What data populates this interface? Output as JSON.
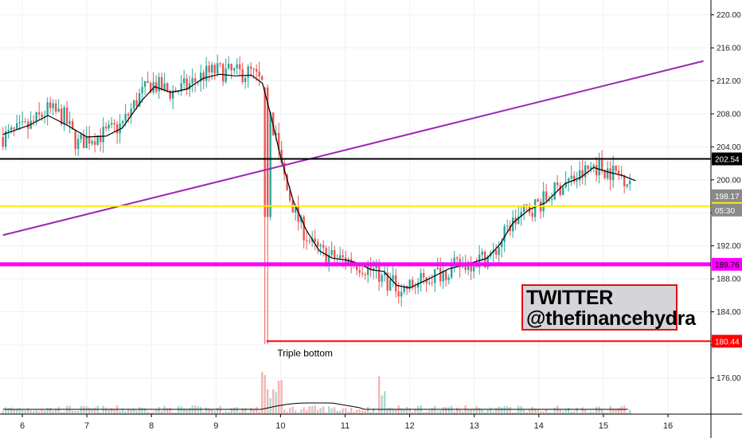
{
  "chart_data": {
    "type": "candlestick",
    "x_tick_labels": [
      "6",
      "7",
      "8",
      "9",
      "10",
      "11",
      "12",
      "13",
      "14",
      "15",
      "16"
    ],
    "y_tick_labels": [
      "176.00",
      "180.00",
      "184.00",
      "188.00",
      "192.00",
      "196.00",
      "200.00",
      "204.00",
      "208.00",
      "212.00",
      "216.00",
      "220.00"
    ],
    "ylim": [
      171.6,
      221.8
    ],
    "y_ticks": [
      176,
      180,
      184,
      188,
      192,
      196,
      200,
      204,
      208,
      212,
      216,
      220
    ],
    "price_series": [
      {
        "x": 5.7,
        "y": 205.2
      },
      {
        "x": 6.1,
        "y": 206.4
      },
      {
        "x": 6.4,
        "y": 208.5
      },
      {
        "x": 6.65,
        "y": 207.6
      },
      {
        "x": 6.85,
        "y": 204.3
      },
      {
        "x": 7.05,
        "y": 205.2
      },
      {
        "x": 7.3,
        "y": 205.6
      },
      {
        "x": 7.55,
        "y": 206.7
      },
      {
        "x": 7.8,
        "y": 210.0
      },
      {
        "x": 8.0,
        "y": 211.7
      },
      {
        "x": 8.3,
        "y": 210.6
      },
      {
        "x": 8.55,
        "y": 211.3
      },
      {
        "x": 8.8,
        "y": 212.7
      },
      {
        "x": 9.0,
        "y": 213.2
      },
      {
        "x": 9.3,
        "y": 212.9
      },
      {
        "x": 9.55,
        "y": 213.0
      },
      {
        "x": 9.75,
        "y": 211.3
      },
      {
        "x": 9.9,
        "y": 206.0
      },
      {
        "x": 10.1,
        "y": 198.8
      },
      {
        "x": 10.3,
        "y": 194.6
      },
      {
        "x": 10.5,
        "y": 191.9
      },
      {
        "x": 10.7,
        "y": 190.8
      },
      {
        "x": 10.9,
        "y": 190.4
      },
      {
        "x": 11.1,
        "y": 190.2
      },
      {
        "x": 11.3,
        "y": 189.4
      },
      {
        "x": 11.5,
        "y": 188.8
      },
      {
        "x": 11.7,
        "y": 187.4
      },
      {
        "x": 11.9,
        "y": 186.8
      },
      {
        "x": 12.1,
        "y": 187.3
      },
      {
        "x": 12.4,
        "y": 188.6
      },
      {
        "x": 12.7,
        "y": 189.4
      },
      {
        "x": 13.0,
        "y": 190.2
      },
      {
        "x": 13.3,
        "y": 190.9
      },
      {
        "x": 13.55,
        "y": 194.5
      },
      {
        "x": 13.8,
        "y": 196.2
      },
      {
        "x": 14.1,
        "y": 197.6
      },
      {
        "x": 14.4,
        "y": 199.7
      },
      {
        "x": 14.6,
        "y": 200.2
      },
      {
        "x": 14.85,
        "y": 201.8
      },
      {
        "x": 15.1,
        "y": 201.1
      },
      {
        "x": 15.3,
        "y": 200.5
      },
      {
        "x": 15.45,
        "y": 199.8
      }
    ],
    "moving_average": [
      {
        "x": 5.7,
        "y": 205.5
      },
      {
        "x": 6.1,
        "y": 206.6
      },
      {
        "x": 6.4,
        "y": 207.8
      },
      {
        "x": 6.7,
        "y": 206.6
      },
      {
        "x": 7.0,
        "y": 205.2
      },
      {
        "x": 7.3,
        "y": 205.3
      },
      {
        "x": 7.55,
        "y": 206.3
      },
      {
        "x": 7.85,
        "y": 209.6
      },
      {
        "x": 8.05,
        "y": 211.3
      },
      {
        "x": 8.3,
        "y": 210.6
      },
      {
        "x": 8.55,
        "y": 211.0
      },
      {
        "x": 8.8,
        "y": 212.3
      },
      {
        "x": 9.05,
        "y": 212.8
      },
      {
        "x": 9.3,
        "y": 212.6
      },
      {
        "x": 9.55,
        "y": 212.7
      },
      {
        "x": 9.72,
        "y": 211.7
      },
      {
        "x": 9.85,
        "y": 207.8
      },
      {
        "x": 10.0,
        "y": 202.8
      },
      {
        "x": 10.2,
        "y": 197.4
      },
      {
        "x": 10.4,
        "y": 193.9
      },
      {
        "x": 10.6,
        "y": 191.4
      },
      {
        "x": 10.8,
        "y": 190.5
      },
      {
        "x": 11.0,
        "y": 190.3
      },
      {
        "x": 11.2,
        "y": 189.9
      },
      {
        "x": 11.4,
        "y": 189.1
      },
      {
        "x": 11.6,
        "y": 188.9
      },
      {
        "x": 11.8,
        "y": 187.2
      },
      {
        "x": 12.0,
        "y": 186.9
      },
      {
        "x": 12.3,
        "y": 188.0
      },
      {
        "x": 12.6,
        "y": 189.2
      },
      {
        "x": 12.9,
        "y": 189.8
      },
      {
        "x": 13.2,
        "y": 190.5
      },
      {
        "x": 13.4,
        "y": 192.2
      },
      {
        "x": 13.6,
        "y": 194.8
      },
      {
        "x": 13.85,
        "y": 196.4
      },
      {
        "x": 14.1,
        "y": 197.2
      },
      {
        "x": 14.4,
        "y": 199.5
      },
      {
        "x": 14.65,
        "y": 200.3
      },
      {
        "x": 14.85,
        "y": 201.5
      },
      {
        "x": 15.05,
        "y": 201.0
      },
      {
        "x": 15.3,
        "y": 200.5
      },
      {
        "x": 15.5,
        "y": 199.9
      }
    ],
    "horizontal_levels": [
      {
        "value": 202.54,
        "label": "202.54",
        "color": "#000000",
        "label_bg": "#000000",
        "label_color": "#ffffff",
        "width": 2
      },
      {
        "value": 196.82,
        "label": "196.82",
        "color": "#ffee00",
        "label_bg": "#ffee00",
        "label_color": "#000000",
        "width": 2
      },
      {
        "value": 189.76,
        "label": "189.76",
        "color": "#ff00ff",
        "label_bg": "#ff00ff",
        "label_color": "#000000",
        "width": 5
      },
      {
        "value": 180.44,
        "label": "180.44",
        "color": "#ff0000",
        "label_bg": "#ff0000",
        "label_color": "#ffffff",
        "width": 2,
        "x_start": 9.78
      }
    ],
    "trendline": {
      "from": {
        "x": 5.7,
        "y": 193.3
      },
      "to": {
        "x": 16.55,
        "y": 214.4
      },
      "color": "#9c27b0"
    },
    "current_price": {
      "value": "198.17",
      "timer": "05:30",
      "label_bg": "#8a8a8a"
    },
    "annotation": {
      "text": "Triple bottom",
      "x": 9.95,
      "y": 178.6
    },
    "info_box": {
      "line1": "TWITTER",
      "line2": "@thefinancehydra"
    },
    "colors": {
      "up": "#26a69a",
      "down": "#ef5350",
      "ma": "#000000",
      "grid": "#eef0f3"
    },
    "grid": true
  }
}
